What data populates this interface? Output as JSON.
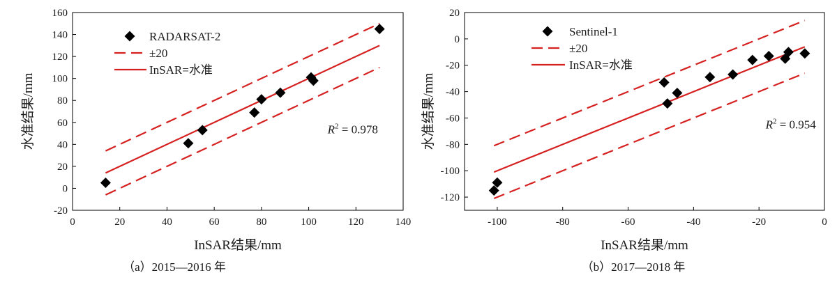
{
  "chart_data": [
    {
      "type": "scatter",
      "caption": "（a）2015—2016 年",
      "xlabel": "InSAR结果/mm",
      "ylabel": "水准结果/mm",
      "xlim": [
        0,
        140
      ],
      "ylim": [
        -20,
        160
      ],
      "x_ticks": [
        0,
        20,
        40,
        60,
        80,
        100,
        120,
        140
      ],
      "y_ticks": [
        -20,
        0,
        20,
        40,
        60,
        80,
        100,
        120,
        140,
        160
      ],
      "x_tick_labels": [
        "0",
        "20",
        "40",
        "60",
        "80",
        "100",
        "120",
        "140"
      ],
      "y_tick_labels": [
        "-20",
        "0",
        "20",
        "40",
        "60",
        "80",
        "100",
        "120",
        "140",
        "160"
      ],
      "grid": false,
      "legend_position": "top-left",
      "legend": [
        "RADARSAT-2",
        "±20",
        "InSAR=水准"
      ],
      "series": [
        {
          "name": "RADARSAT-2",
          "marker": "diamond",
          "color": "#000000",
          "points": [
            {
              "x": 14,
              "y": 5
            },
            {
              "x": 49,
              "y": 41
            },
            {
              "x": 55,
              "y": 53
            },
            {
              "x": 77,
              "y": 69
            },
            {
              "x": 80,
              "y": 81
            },
            {
              "x": 88,
              "y": 87
            },
            {
              "x": 101,
              "y": 101
            },
            {
              "x": 102,
              "y": 98
            },
            {
              "x": 130,
              "y": 145
            }
          ]
        }
      ],
      "lines": [
        {
          "name": "InSAR=水准",
          "style": "solid",
          "color": "#d62020",
          "x_range": [
            14,
            130
          ],
          "offset": 0
        },
        {
          "name": "±20",
          "style": "dashed",
          "color": "#d62020",
          "x_range": [
            14,
            130
          ],
          "offset": 20
        },
        {
          "name": "±20",
          "style": "dashed",
          "color": "#d62020",
          "x_range": [
            14,
            130
          ],
          "offset": -20
        }
      ],
      "annotation": {
        "text_prefix": "R",
        "superscript": "2",
        "text_suffix": " = 0.978",
        "x": 108,
        "y": 50
      }
    },
    {
      "type": "scatter",
      "caption": "（b）2017—2018 年",
      "xlabel": "InSAR结果/mm",
      "ylabel": "水准结果/mm",
      "xlim": [
        -110,
        0
      ],
      "ylim": [
        -130,
        20
      ],
      "x_ticks": [
        -100,
        -80,
        -60,
        -40,
        -20,
        0
      ],
      "y_ticks": [
        -120,
        -100,
        -80,
        -60,
        -40,
        -20,
        0,
        20
      ],
      "x_tick_labels": [
        "-100",
        "-80",
        "-60",
        "-40",
        "-20",
        "0"
      ],
      "y_tick_labels": [
        "-120",
        "-100",
        "-80",
        "-60",
        "-40",
        "-20",
        "0",
        "20"
      ],
      "grid": false,
      "legend_position": "top-left",
      "legend": [
        "Sentinel-1",
        "±20",
        "InSAR=水准"
      ],
      "series": [
        {
          "name": "Sentinel-1",
          "marker": "diamond",
          "color": "#000000",
          "points": [
            {
              "x": -101,
              "y": -115
            },
            {
              "x": -100,
              "y": -109
            },
            {
              "x": -49,
              "y": -33
            },
            {
              "x": -48,
              "y": -49
            },
            {
              "x": -45,
              "y": -41
            },
            {
              "x": -35,
              "y": -29
            },
            {
              "x": -28,
              "y": -27
            },
            {
              "x": -22,
              "y": -16
            },
            {
              "x": -17,
              "y": -13
            },
            {
              "x": -12,
              "y": -15
            },
            {
              "x": -11,
              "y": -10
            },
            {
              "x": -6,
              "y": -11
            }
          ]
        }
      ],
      "lines": [
        {
          "name": "InSAR=水准",
          "style": "solid",
          "color": "#d62020",
          "x_range": [
            -101,
            -6
          ],
          "offset": 0
        },
        {
          "name": "±20",
          "style": "dashed",
          "color": "#d62020",
          "x_range": [
            -101,
            -6
          ],
          "offset": 20
        },
        {
          "name": "±20",
          "style": "dashed",
          "color": "#d62020",
          "x_range": [
            -101,
            -6
          ],
          "offset": -20
        }
      ],
      "annotation": {
        "text_prefix": "R",
        "superscript": "2",
        "text_suffix": " = 0.954",
        "x": -18,
        "y": -68
      }
    }
  ]
}
